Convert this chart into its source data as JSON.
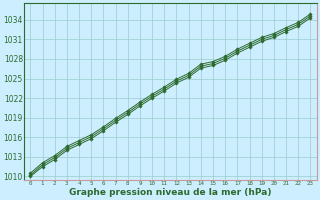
{
  "title": "Graphe pression niveau de la mer (hPa)",
  "x_values": [
    0,
    1,
    2,
    3,
    4,
    5,
    6,
    7,
    8,
    9,
    10,
    11,
    12,
    13,
    14,
    15,
    16,
    17,
    18,
    19,
    20,
    21,
    22,
    23
  ],
  "line1": [
    1010.5,
    1012.1,
    1013.2,
    1014.6,
    1015.5,
    1016.4,
    1017.6,
    1018.9,
    1020.1,
    1021.4,
    1022.6,
    1023.7,
    1024.9,
    1025.8,
    1027.2,
    1027.6,
    1028.4,
    1029.5,
    1030.4,
    1031.3,
    1031.9,
    1032.8,
    1033.6,
    1034.9
  ],
  "line2": [
    1010.2,
    1011.8,
    1012.9,
    1014.3,
    1015.2,
    1016.1,
    1017.3,
    1018.6,
    1019.8,
    1021.1,
    1022.3,
    1023.4,
    1024.6,
    1025.5,
    1026.9,
    1027.3,
    1028.1,
    1029.2,
    1030.1,
    1031.0,
    1031.6,
    1032.5,
    1033.3,
    1034.6
  ],
  "line3": [
    1010.0,
    1011.5,
    1012.6,
    1014.0,
    1014.9,
    1015.8,
    1017.0,
    1018.3,
    1019.5,
    1020.8,
    1022.0,
    1023.1,
    1024.3,
    1025.2,
    1026.6,
    1027.0,
    1027.8,
    1028.9,
    1029.8,
    1030.7,
    1031.3,
    1032.2,
    1033.0,
    1034.3
  ],
  "line_color": "#2d6a2d",
  "bg_color": "#cceeff",
  "plot_bg": "#cceeff",
  "grid_color": "#99cccc",
  "border_right_color": "#cc9999",
  "border_bottom_color": "#cc9999",
  "ylim": [
    1009.5,
    1036.5
  ],
  "yticks": [
    1010,
    1013,
    1016,
    1019,
    1022,
    1025,
    1028,
    1031,
    1034
  ],
  "ylabel_fontsize": 5.5,
  "xlabel_fontsize": 6.5,
  "marker": "D",
  "marker_size": 1.8,
  "linewidth": 0.7
}
